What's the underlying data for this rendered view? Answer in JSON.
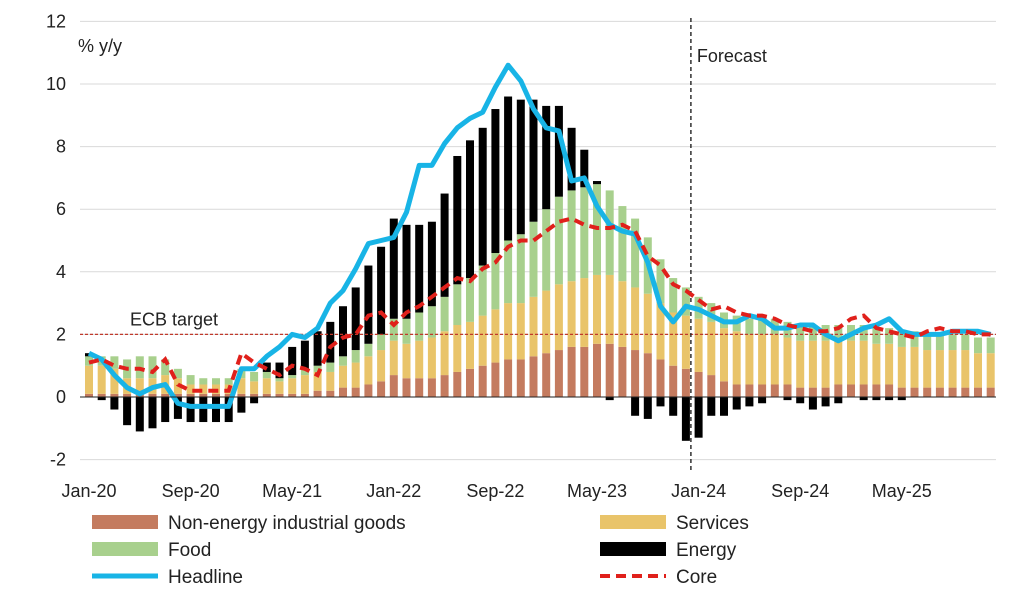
{
  "chart_data": {
    "type": "bar",
    "stacked": true,
    "ylabel": "% y/y",
    "ylim": [
      -2,
      12
    ],
    "yticks": [
      -2,
      0,
      2,
      4,
      6,
      8,
      10,
      12
    ],
    "x_start": "Jan-20",
    "x_tick_labels": [
      "Jan-20",
      "Sep-20",
      "May-21",
      "Jan-22",
      "Sep-22",
      "May-23",
      "Jan-24",
      "Sep-24",
      "May-25"
    ],
    "x_tick_index": [
      0,
      8,
      16,
      24,
      32,
      40,
      48,
      56,
      64
    ],
    "grid": "horizontal",
    "reference_line": {
      "label": "ECB target",
      "value": 2,
      "color": "#c0392b"
    },
    "forecast_marker": {
      "label": "Forecast",
      "at_month": "Dec-23"
    },
    "series": [
      {
        "name": "Non-energy industrial goods",
        "key": "neig",
        "color": "#c47b5f",
        "kind": "bar",
        "values": [
          0.1,
          0.1,
          0.1,
          0.1,
          0.1,
          0.1,
          0.1,
          0.1,
          0.1,
          0.1,
          0.1,
          0.1,
          0.1,
          0.1,
          0.1,
          0.1,
          0.1,
          0.1,
          0.2,
          0.2,
          0.3,
          0.3,
          0.4,
          0.5,
          0.7,
          0.6,
          0.6,
          0.6,
          0.7,
          0.8,
          0.9,
          1.0,
          1.1,
          1.2,
          1.2,
          1.3,
          1.4,
          1.5,
          1.6,
          1.6,
          1.7,
          1.7,
          1.6,
          1.5,
          1.4,
          1.2,
          1.0,
          0.9,
          0.8,
          0.7,
          0.5,
          0.4,
          0.4,
          0.4,
          0.4,
          0.4,
          0.3,
          0.3,
          0.3,
          0.4,
          0.4,
          0.4,
          0.4,
          0.4,
          0.3,
          0.3,
          0.3,
          0.3,
          0.3,
          0.3,
          0.3,
          0.3
        ]
      },
      {
        "name": "Services",
        "key": "serv",
        "color": "#e9c46a",
        "kind": "bar",
        "values": [
          0.9,
          0.9,
          0.8,
          0.5,
          0.5,
          0.5,
          0.6,
          0.5,
          0.3,
          0.3,
          0.3,
          0.3,
          0.5,
          0.4,
          0.5,
          0.4,
          0.5,
          0.6,
          0.6,
          0.6,
          0.7,
          0.8,
          0.9,
          1.0,
          1.1,
          1.1,
          1.2,
          1.3,
          1.4,
          1.5,
          1.5,
          1.6,
          1.7,
          1.8,
          1.8,
          1.9,
          2.0,
          2.1,
          2.1,
          2.2,
          2.2,
          2.2,
          2.1,
          2.0,
          1.9,
          1.8,
          1.7,
          1.7,
          1.7,
          1.7,
          1.7,
          1.7,
          1.6,
          1.6,
          1.6,
          1.5,
          1.5,
          1.5,
          1.5,
          1.4,
          1.4,
          1.4,
          1.3,
          1.3,
          1.3,
          1.3,
          1.2,
          1.2,
          1.2,
          1.2,
          1.1,
          1.1
        ]
      },
      {
        "name": "Food",
        "key": "food",
        "color": "#a8d08d",
        "kind": "bar",
        "values": [
          0.3,
          0.3,
          0.4,
          0.6,
          0.7,
          0.7,
          0.5,
          0.3,
          0.3,
          0.2,
          0.2,
          0.2,
          0.3,
          0.3,
          0.2,
          0.1,
          0.1,
          0.2,
          0.2,
          0.3,
          0.3,
          0.4,
          0.4,
          0.5,
          0.7,
          0.8,
          0.9,
          1.0,
          1.1,
          1.3,
          1.4,
          1.6,
          1.8,
          2.0,
          2.2,
          2.4,
          2.6,
          2.8,
          2.9,
          2.9,
          2.9,
          2.7,
          2.4,
          2.2,
          1.8,
          1.4,
          1.1,
          0.9,
          0.7,
          0.6,
          0.5,
          0.5,
          0.5,
          0.5,
          0.5,
          0.5,
          0.5,
          0.5,
          0.5,
          0.5,
          0.5,
          0.5,
          0.5,
          0.5,
          0.5,
          0.5,
          0.5,
          0.5,
          0.5,
          0.5,
          0.5,
          0.5
        ]
      },
      {
        "name": "Energy",
        "key": "energy",
        "color": "#000000",
        "kind": "bar",
        "values": [
          0.1,
          -0.1,
          -0.4,
          -0.9,
          -1.1,
          -1.0,
          -0.8,
          -0.7,
          -0.8,
          -0.8,
          -0.8,
          -0.8,
          -0.5,
          -0.2,
          0.3,
          0.5,
          0.9,
          0.9,
          1.1,
          1.3,
          1.6,
          2.0,
          2.5,
          2.8,
          3.2,
          3.0,
          2.8,
          2.7,
          3.3,
          4.1,
          4.4,
          4.4,
          4.6,
          4.6,
          4.3,
          3.9,
          3.3,
          2.9,
          2.0,
          1.2,
          0.1,
          -0.1,
          0.0,
          -0.6,
          -0.7,
          -0.3,
          -0.6,
          -1.4,
          -1.3,
          -0.6,
          -0.6,
          -0.4,
          -0.3,
          -0.2,
          0.0,
          -0.1,
          -0.2,
          -0.4,
          -0.3,
          -0.2,
          0.0,
          -0.1,
          -0.1,
          -0.1,
          -0.1,
          0.0,
          0.0,
          0.0,
          0.0,
          0.0,
          0.0,
          0.0
        ]
      },
      {
        "name": "Headline",
        "key": "headline",
        "color": "#18b4e6",
        "kind": "line",
        "values": [
          1.4,
          1.2,
          0.7,
          0.3,
          0.1,
          0.3,
          0.4,
          -0.2,
          -0.3,
          -0.3,
          -0.3,
          -0.3,
          0.9,
          0.9,
          1.3,
          1.6,
          2.0,
          1.9,
          2.2,
          3.0,
          3.4,
          4.1,
          4.9,
          5.0,
          5.1,
          5.9,
          7.4,
          7.4,
          8.1,
          8.6,
          8.9,
          9.1,
          9.9,
          10.6,
          10.1,
          9.2,
          8.6,
          8.5,
          6.9,
          7.0,
          6.1,
          5.5,
          5.3,
          5.2,
          4.3,
          2.9,
          2.4,
          2.9,
          2.8,
          2.6,
          2.4,
          2.4,
          2.6,
          2.5,
          2.2,
          2.2,
          2.3,
          2.3,
          2.0,
          1.8,
          2.0,
          2.2,
          2.3,
          2.5,
          2.1,
          2.0,
          2.0,
          2.0,
          2.1,
          2.1,
          2.1,
          2.0
        ]
      },
      {
        "name": "Core",
        "key": "core",
        "color": "#e0201b",
        "kind": "dash",
        "values": [
          1.1,
          1.2,
          1.0,
          0.9,
          0.9,
          0.8,
          1.2,
          0.4,
          0.2,
          0.2,
          0.2,
          0.2,
          1.4,
          1.1,
          0.9,
          0.7,
          1.0,
          0.9,
          0.7,
          1.6,
          1.9,
          2.0,
          2.6,
          2.7,
          2.3,
          2.7,
          2.9,
          3.2,
          3.5,
          3.8,
          3.7,
          4.1,
          4.3,
          4.8,
          5.0,
          5.0,
          5.3,
          5.6,
          5.7,
          5.5,
          5.4,
          5.4,
          5.5,
          5.3,
          4.5,
          4.2,
          3.6,
          3.4,
          3.1,
          2.8,
          2.9,
          2.7,
          2.6,
          2.6,
          2.5,
          2.3,
          2.2,
          2.1,
          2.1,
          2.2,
          2.5,
          2.6,
          2.2,
          2.1,
          2.0,
          1.9,
          2.1,
          2.2,
          2.1,
          2.1,
          2.0,
          2.0
        ]
      }
    ]
  }
}
